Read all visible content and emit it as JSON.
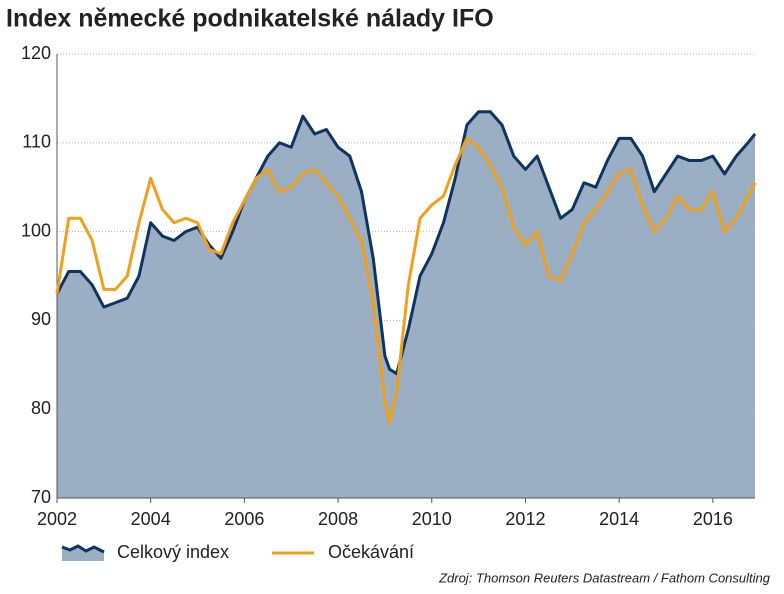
{
  "chart_data": {
    "type": "area-line",
    "title": "Index německé podnikatelské nálady IFO",
    "source": "Zdroj: Thomson Reuters Datastream / Fathom Consulting",
    "x": [
      2002.0,
      2002.25,
      2002.5,
      2002.75,
      2003.0,
      2003.25,
      2003.5,
      2003.75,
      2004.0,
      2004.25,
      2004.5,
      2004.75,
      2005.0,
      2005.25,
      2005.5,
      2005.75,
      2006.0,
      2006.25,
      2006.5,
      2006.75,
      2007.0,
      2007.25,
      2007.5,
      2007.75,
      2008.0,
      2008.25,
      2008.5,
      2008.75,
      2009.0,
      2009.1,
      2009.25,
      2009.5,
      2009.75,
      2010.0,
      2010.25,
      2010.5,
      2010.75,
      2011.0,
      2011.25,
      2011.5,
      2011.75,
      2012.0,
      2012.25,
      2012.5,
      2012.75,
      2013.0,
      2013.25,
      2013.5,
      2013.75,
      2014.0,
      2014.25,
      2014.5,
      2014.75,
      2015.0,
      2015.25,
      2015.5,
      2015.75,
      2016.0,
      2016.25,
      2016.5,
      2016.75,
      2016.9
    ],
    "series": [
      {
        "name": "Celkový index",
        "color": "#0d3462",
        "fill": "#9aafc3",
        "values": [
          93,
          95.5,
          95.5,
          94,
          91.5,
          92,
          92.5,
          95,
          101,
          99.5,
          99,
          100,
          100.5,
          98.5,
          97,
          100,
          103.5,
          106,
          108.5,
          110,
          109.5,
          113,
          111,
          111.5,
          109.5,
          108.5,
          104.5,
          97,
          86,
          84.5,
          84,
          89,
          95,
          97.5,
          101,
          106,
          112,
          113.5,
          113.5,
          112,
          108.5,
          107,
          108.5,
          105,
          101.5,
          102.5,
          105.5,
          105,
          108,
          110.5,
          110.5,
          108.5,
          104.5,
          106.5,
          108.5,
          108,
          108,
          108.5,
          106.5,
          108.5,
          110,
          111
        ]
      },
      {
        "name": "Očekávání",
        "color": "#f0a01c",
        "values": [
          93,
          101.5,
          101.5,
          99,
          93.5,
          93.5,
          95,
          101,
          106,
          102.5,
          101,
          101.5,
          101,
          98,
          97.5,
          101,
          103.5,
          106,
          107,
          104.5,
          105,
          106.5,
          107,
          105.5,
          104,
          101.5,
          99,
          92,
          81,
          78.5,
          82,
          94,
          101.5,
          103,
          104,
          107.5,
          110.5,
          109.5,
          107.5,
          105,
          100.5,
          98.5,
          100,
          95,
          94.5,
          97.5,
          101,
          102.5,
          104.5,
          106.5,
          107,
          103,
          100,
          101.5,
          104,
          102.5,
          102.5,
          104.5,
          100,
          101.5,
          104,
          105.5
        ]
      }
    ],
    "xlim": [
      2002,
      2016.9
    ],
    "xticks": [
      2002,
      2004,
      2006,
      2008,
      2010,
      2012,
      2014,
      2016
    ],
    "ylim": [
      70,
      120
    ],
    "yticks": [
      70,
      80,
      90,
      100,
      110,
      120
    ],
    "grid": true
  }
}
